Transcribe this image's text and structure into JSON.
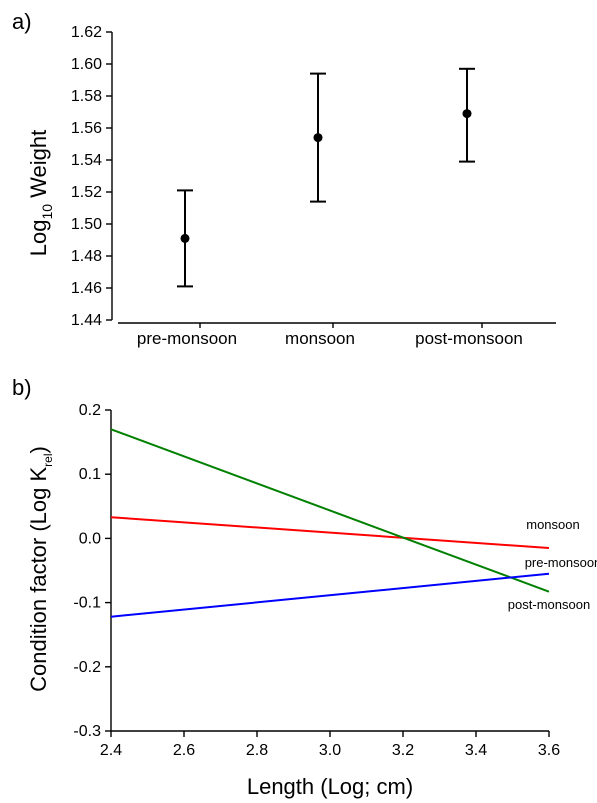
{
  "chart_data": [
    {
      "type": "scatter",
      "panel_label": "a)",
      "title": "",
      "xlabel": "",
      "ylabel": {
        "prefix": "Log",
        "subscript": "10",
        "suffix": " Weight"
      },
      "categories": [
        "pre-monsoon",
        "monsoon",
        "post-monsoon"
      ],
      "series": [
        {
          "values": [
            1.491,
            1.554,
            1.569
          ],
          "error_low": [
            1.461,
            1.514,
            1.539
          ],
          "error_high": [
            1.521,
            1.594,
            1.597
          ]
        }
      ],
      "ylim": [
        1.44,
        1.62
      ],
      "yticks": [
        1.44,
        1.46,
        1.48,
        1.5,
        1.52,
        1.54,
        1.56,
        1.58,
        1.6,
        1.62
      ],
      "ytick_labels": [
        "1.44",
        "1.46",
        "1.48",
        "1.50",
        "1.52",
        "1.54",
        "1.56",
        "1.58",
        "1.60",
        "1.62"
      ],
      "grid": false,
      "marker_color": "#000000"
    },
    {
      "type": "line",
      "panel_label": "b)",
      "title": "",
      "xlabel": "Length (Log; cm)",
      "ylabel": {
        "prefix": "Condition factor (Log K",
        "subscript": "rel",
        "suffix": ")"
      },
      "series": [
        {
          "name": "monsoon",
          "color": "#ff0000",
          "x": [
            2.4,
            3.6
          ],
          "y": [
            0.033,
            -0.015
          ]
        },
        {
          "name": "pre-monsoon",
          "color": "#008000",
          "x": [
            2.4,
            3.6
          ],
          "y": [
            0.17,
            -0.083
          ]
        },
        {
          "name": "post-monsoon",
          "color": "#0000ff",
          "x": [
            2.4,
            3.6
          ],
          "y": [
            -0.122,
            -0.055
          ]
        }
      ],
      "xlim": [
        2.4,
        3.6
      ],
      "ylim": [
        -0.3,
        0.2
      ],
      "xticks": [
        2.4,
        2.6,
        2.8,
        3.0,
        3.2,
        3.4,
        3.6
      ],
      "xtick_labels": [
        "2.4",
        "2.6",
        "2.8",
        "3.0",
        "3.2",
        "3.4",
        "3.6"
      ],
      "yticks": [
        -0.3,
        -0.2,
        -0.1,
        0.0,
        0.1,
        0.2
      ],
      "ytick_labels": [
        "-0.3",
        "-0.2",
        "-0.1",
        "0.0",
        "0.1",
        "0.2"
      ],
      "grid": false
    }
  ]
}
